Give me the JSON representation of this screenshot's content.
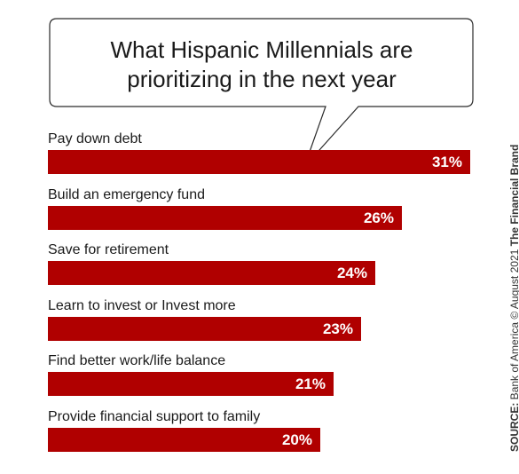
{
  "chart_data": {
    "type": "bar",
    "orientation": "horizontal",
    "title": "What Hispanic Millennials are prioritizing in the next year",
    "categories": [
      "Pay down debt",
      "Build an emergency fund",
      "Save for retirement",
      "Learn to invest or Invest more",
      "Find better work/life balance",
      "Provide financial support to family"
    ],
    "values": [
      31,
      26,
      24,
      23,
      21,
      20
    ],
    "value_labels": [
      "31%",
      "26%",
      "24%",
      "23%",
      "21%",
      "20%"
    ],
    "xlim": [
      0,
      31
    ],
    "grid": false,
    "bar_color": "#b00000"
  },
  "source": {
    "label": "SOURCE:",
    "text": "Bank of America © August 2021",
    "brand": "The Financial Brand"
  }
}
